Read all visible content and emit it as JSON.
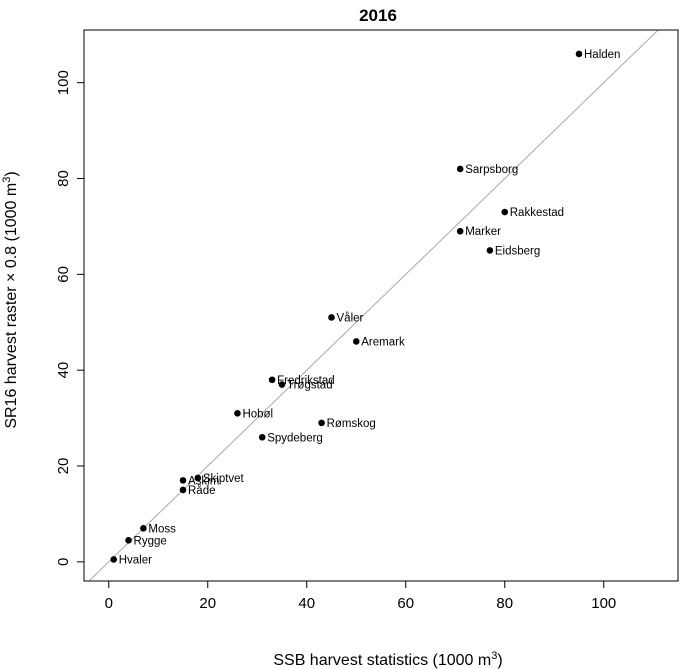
{
  "chart_data": {
    "type": "scatter",
    "title": "2016",
    "xlabel": "SSB harvest statistics (1000 m",
    "xlabel_sup": "3",
    "xlabel_end": ")",
    "ylabel": "SR16 harvest raster × 0.8 (1000 m",
    "ylabel_sup": "3",
    "ylabel_end": ")",
    "xlim": [
      -5,
      115
    ],
    "ylim": [
      -4,
      111
    ],
    "xticks": [
      0,
      20,
      40,
      60,
      80,
      100
    ],
    "yticks": [
      0,
      20,
      40,
      60,
      80,
      100
    ],
    "reference_line": "y = x",
    "grid": false,
    "points": [
      {
        "label": "Halden",
        "x": 95,
        "y": 106
      },
      {
        "label": "Sarpsborg",
        "x": 71,
        "y": 82
      },
      {
        "label": "Rakkestad",
        "x": 80,
        "y": 73
      },
      {
        "label": "Marker",
        "x": 71,
        "y": 69
      },
      {
        "label": "Eidsberg",
        "x": 77,
        "y": 65
      },
      {
        "label": "Våler",
        "x": 45,
        "y": 51
      },
      {
        "label": "Aremark",
        "x": 50,
        "y": 46
      },
      {
        "label": "Fredrikstad",
        "x": 33,
        "y": 38
      },
      {
        "label": "Trøgstad",
        "x": 35,
        "y": 37
      },
      {
        "label": "Hobøl",
        "x": 26,
        "y": 31
      },
      {
        "label": "Rømskog",
        "x": 43,
        "y": 29
      },
      {
        "label": "Spydeberg",
        "x": 31,
        "y": 26
      },
      {
        "label": "Skiptvet",
        "x": 18,
        "y": 17.5
      },
      {
        "label": "Askim",
        "x": 15,
        "y": 17
      },
      {
        "label": "Råde",
        "x": 15,
        "y": 15
      },
      {
        "label": "Moss",
        "x": 7,
        "y": 7
      },
      {
        "label": "Rygge",
        "x": 4,
        "y": 4.5
      },
      {
        "label": "Hvaler",
        "x": 1,
        "y": 0.5
      }
    ]
  }
}
